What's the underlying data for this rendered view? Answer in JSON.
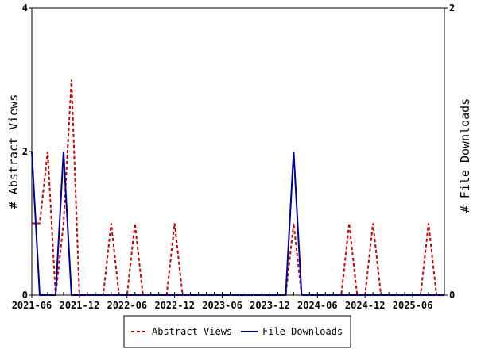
{
  "chart_data": {
    "type": "line",
    "title": "",
    "xlabel": "",
    "ylabel_left": "# Abstract Views",
    "ylabel_right": "# File Downloads",
    "ylim_left": [
      0,
      4
    ],
    "ylim_right": [
      0,
      2
    ],
    "yticks_left": [
      "0",
      "2",
      "4"
    ],
    "yticks_right": [
      "0",
      "2"
    ],
    "x_start": "2021-06",
    "x_end": "2025-10",
    "xticks": [
      "2021-06",
      "2021-12",
      "2022-06",
      "2022-12",
      "2023-06",
      "2023-12",
      "2024-06",
      "2024-12",
      "2025-06"
    ],
    "legend_position": "bottom",
    "series": [
      {
        "name": "Abstract Views",
        "axis": "left",
        "color": "#cc0000",
        "style": "dashed",
        "x": [
          "2021-06",
          "2021-07",
          "2021-08",
          "2021-09",
          "2021-10",
          "2021-11",
          "2021-12",
          "2022-01",
          "2022-02",
          "2022-03",
          "2022-04",
          "2022-05",
          "2022-06",
          "2022-07",
          "2022-08",
          "2022-09",
          "2022-10",
          "2022-11",
          "2022-12",
          "2023-01",
          "2023-02",
          "2023-03",
          "2023-04",
          "2023-05",
          "2023-06",
          "2023-07",
          "2023-08",
          "2023-09",
          "2023-10",
          "2023-11",
          "2023-12",
          "2024-01",
          "2024-02",
          "2024-03",
          "2024-04",
          "2024-05",
          "2024-06",
          "2024-07",
          "2024-08",
          "2024-09",
          "2024-10",
          "2024-11",
          "2024-12",
          "2025-01",
          "2025-02",
          "2025-03",
          "2025-04",
          "2025-05",
          "2025-06",
          "2025-07",
          "2025-08",
          "2025-09",
          "2025-10"
        ],
        "values": [
          1,
          1,
          2,
          0,
          1,
          3,
          0,
          0,
          0,
          0,
          1,
          0,
          0,
          1,
          0,
          0,
          0,
          0,
          1,
          0,
          0,
          0,
          0,
          0,
          0,
          0,
          0,
          0,
          0,
          0,
          0,
          0,
          0,
          1,
          0,
          0,
          0,
          0,
          0,
          0,
          1,
          0,
          0,
          1,
          0,
          0,
          0,
          0,
          0,
          0,
          1,
          0,
          0
        ]
      },
      {
        "name": "File Downloads",
        "axis": "right",
        "color": "#000099",
        "style": "solid",
        "x": [
          "2021-06",
          "2021-07",
          "2021-08",
          "2021-09",
          "2021-10",
          "2021-11",
          "2021-12",
          "2022-01",
          "2022-02",
          "2022-03",
          "2022-04",
          "2022-05",
          "2022-06",
          "2022-07",
          "2022-08",
          "2022-09",
          "2022-10",
          "2022-11",
          "2022-12",
          "2023-01",
          "2023-02",
          "2023-03",
          "2023-04",
          "2023-05",
          "2023-06",
          "2023-07",
          "2023-08",
          "2023-09",
          "2023-10",
          "2023-11",
          "2023-12",
          "2024-01",
          "2024-02",
          "2024-03",
          "2024-04",
          "2024-05",
          "2024-06",
          "2024-07",
          "2024-08",
          "2024-09",
          "2024-10",
          "2024-11",
          "2024-12",
          "2025-01",
          "2025-02",
          "2025-03",
          "2025-04",
          "2025-05",
          "2025-06",
          "2025-07",
          "2025-08",
          "2025-09",
          "2025-10"
        ],
        "values": [
          1,
          0,
          0,
          0,
          1,
          0,
          0,
          0,
          0,
          0,
          0,
          0,
          0,
          0,
          0,
          0,
          0,
          0,
          0,
          0,
          0,
          0,
          0,
          0,
          0,
          0,
          0,
          0,
          0,
          0,
          0,
          0,
          0,
          1,
          0,
          0,
          0,
          0,
          0,
          0,
          0,
          0,
          0,
          0,
          0,
          0,
          0,
          0,
          0,
          0,
          0,
          0,
          0
        ]
      }
    ]
  }
}
